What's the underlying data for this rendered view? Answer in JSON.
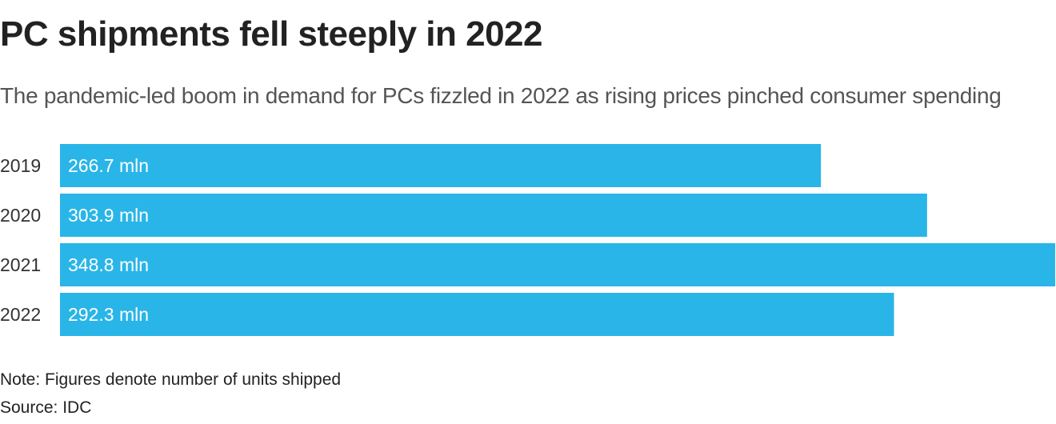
{
  "header": {
    "title": "PC shipments fell steeply in 2022",
    "subtitle": "The pandemic-led boom in demand for PCs fizzled in 2022 as rising prices pinched consumer spending"
  },
  "chart_data": {
    "type": "bar",
    "orientation": "horizontal",
    "categories": [
      "2019",
      "2020",
      "2021",
      "2022"
    ],
    "values": [
      266.7,
      303.9,
      348.8,
      292.3
    ],
    "data_labels": [
      "266.7 mln",
      "303.9 mln",
      "348.8 mln",
      "292.3 mln"
    ],
    "unit": "mln",
    "title": "PC shipments fell steeply in 2022",
    "subtitle": "The pandemic-led boom in demand for PCs fizzled in 2022 as rising prices pinched consumer spending",
    "xlim": [
      0,
      348.8
    ],
    "grid": false,
    "bar_color": "#29b5e8",
    "label_color": "#ffffff"
  },
  "footer": {
    "note": "Note: Figures denote number of units shipped",
    "source": "Source: IDC"
  }
}
